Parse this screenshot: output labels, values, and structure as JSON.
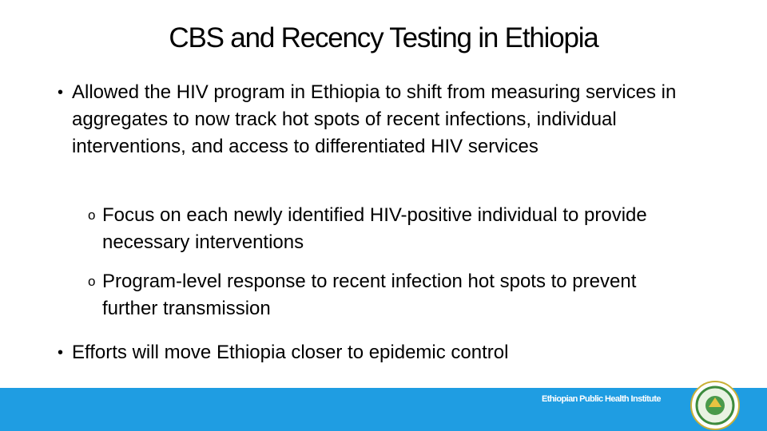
{
  "title": "CBS and Recency Testing in Ethiopia",
  "bullets": [
    {
      "text": "Allowed the HIV program in Ethiopia to shift from measuring services in aggregates to now track hot spots of recent infections, individual interventions, and access to differentiated HIV services",
      "sub_bullets": [
        "Focus on each newly identified HIV-positive individual to provide necessary interventions",
        "Program-level response to recent infection hot spots to prevent further transmission"
      ]
    },
    {
      "text": "Efforts will move Ethiopia closer to epidemic control"
    }
  ],
  "footer": {
    "organization": "Ethiopian Public Health Institute"
  }
}
